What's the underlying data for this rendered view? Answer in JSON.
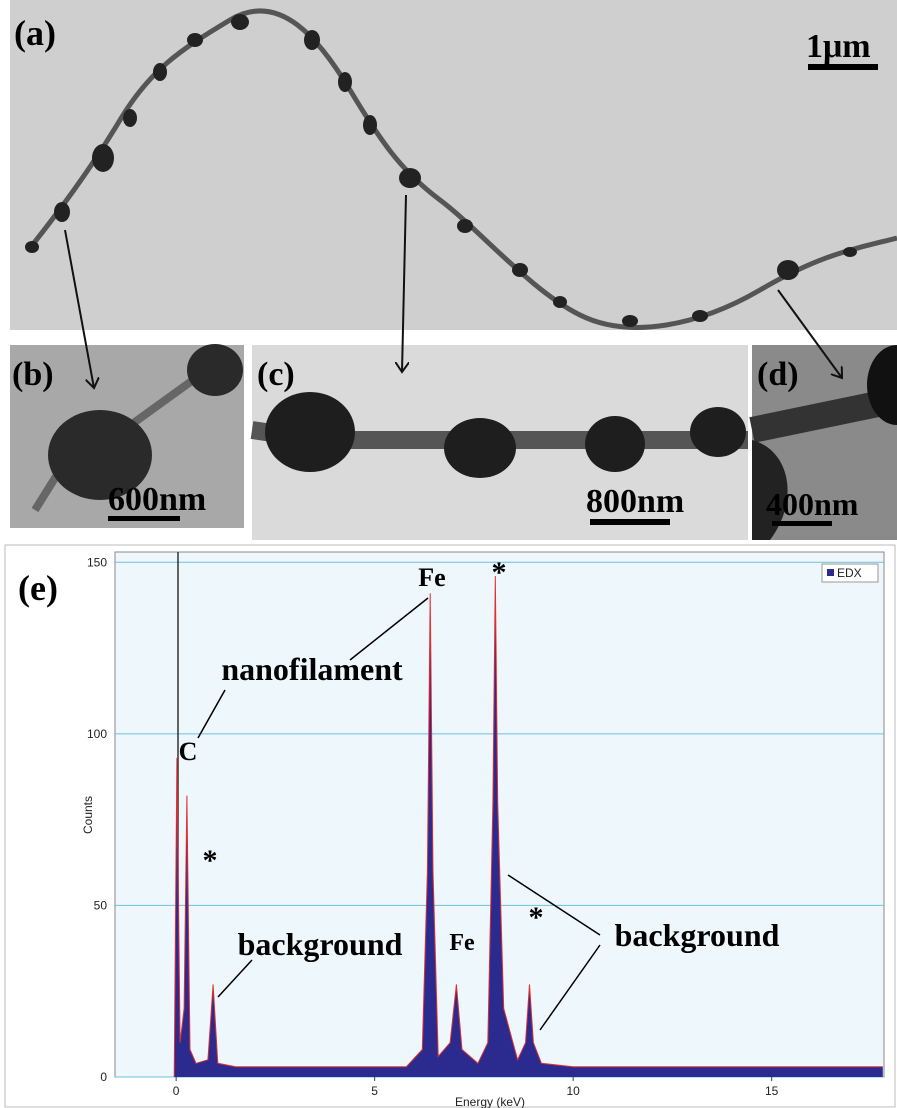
{
  "panels": {
    "a": {
      "label": "(a)",
      "scale": "1μm"
    },
    "b": {
      "label": "(b)",
      "scale": "600nm"
    },
    "c": {
      "label": "(c)",
      "scale": "800nm"
    },
    "d": {
      "label": "(d)",
      "scale": "400nm"
    },
    "e": {
      "label": "(e)"
    }
  },
  "chart_data": {
    "type": "area",
    "xlabel": "Energy (keV)",
    "ylabel": "Counts",
    "x": [
      -0.05,
      0.02,
      0.1,
      0.2,
      0.27,
      0.35,
      0.5,
      0.8,
      0.93,
      1.05,
      1.5,
      2,
      3,
      4,
      5,
      5.8,
      6.2,
      6.33,
      6.4,
      6.47,
      6.6,
      6.9,
      7.06,
      7.2,
      7.6,
      7.85,
      7.98,
      8.04,
      8.1,
      8.25,
      8.6,
      8.8,
      8.9,
      9.0,
      9.2,
      10,
      12,
      14,
      16,
      17.8
    ],
    "series": [
      {
        "name": "EDX",
        "color": "#2b2b8f",
        "values": [
          0,
          93,
          10,
          20,
          82,
          8,
          4,
          5,
          27,
          4,
          3,
          3,
          3,
          3,
          3,
          3,
          8,
          60,
          141,
          60,
          6,
          10,
          27,
          8,
          4,
          10,
          80,
          146,
          80,
          20,
          5,
          10,
          27,
          10,
          4,
          3,
          3,
          3,
          3,
          3
        ]
      }
    ],
    "xlim": [
      -1.54,
      17.83
    ],
    "ylim": [
      0,
      153
    ],
    "xticks": [
      0,
      5,
      10,
      15
    ],
    "yticks": [
      0,
      50,
      100,
      150
    ],
    "grid": true,
    "legend": "upper right",
    "annotations": [
      {
        "text": "Fe"
      },
      {
        "text": "*"
      },
      {
        "text": "nanofilament"
      },
      {
        "text": "C"
      },
      {
        "text": "background"
      },
      {
        "text": "*"
      },
      {
        "text": "Fe"
      },
      {
        "text": "background"
      },
      {
        "text": "*"
      }
    ]
  }
}
